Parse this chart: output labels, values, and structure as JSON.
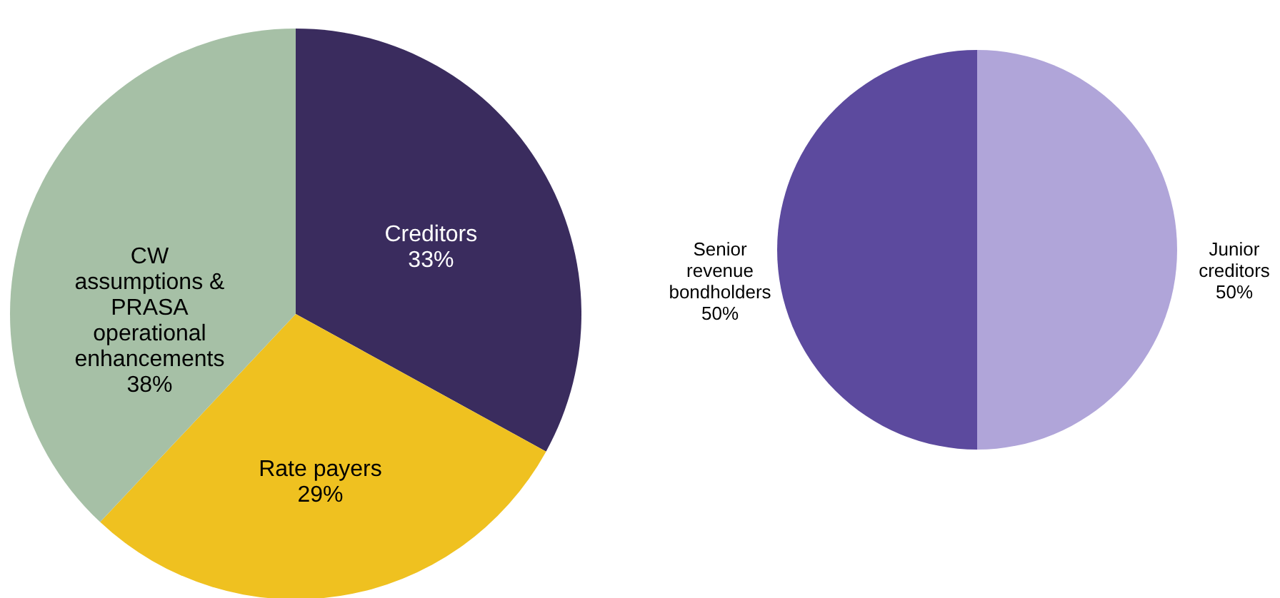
{
  "chart_data": [
    {
      "type": "pie",
      "categories": [
        "Creditors",
        "Rate payers",
        "CW\nassumptions &\nPRASA\noperational\nenhancements"
      ],
      "values": [
        33,
        29,
        38
      ],
      "colors": [
        "#3a2c5e",
        "#efc120",
        "#a6c0a6"
      ],
      "value_labels": [
        "33%",
        "29%",
        "38%"
      ]
    },
    {
      "type": "pie",
      "categories": [
        "Junior\ncreditors",
        "Senior\nrevenue\nbondholders"
      ],
      "values": [
        50,
        50
      ],
      "colors": [
        "#b0a5d9",
        "#5c4a9e"
      ],
      "value_labels": [
        "50%",
        "50%"
      ]
    }
  ]
}
